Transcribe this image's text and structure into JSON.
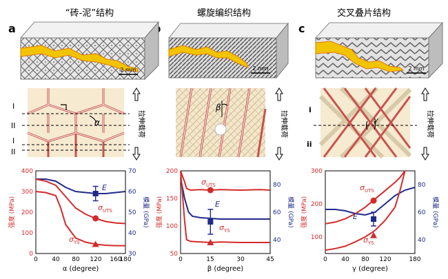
{
  "panels": [
    {
      "letter": "a",
      "title": "“砖-泥”结构",
      "scale_bar": "2 mm",
      "load_label": "拉伸载荷",
      "angle_symbol": "α",
      "layer_labels": [
        "I",
        "II",
        "I",
        "II"
      ],
      "ylabel_left": "强度 (MPa)",
      "ylabel_right": "模量 (GPa)",
      "xlabel": "α (degree)",
      "x_ticks": [
        "0",
        "40",
        "80",
        "120",
        "160",
        "180"
      ],
      "y_left_ticks": [
        "0",
        "100",
        "200",
        "300",
        "400"
      ],
      "y_right_ticks": [
        "30",
        "40",
        "50",
        "60",
        "70"
      ],
      "annotations": {
        "E": "E",
        "uts": "σ",
        "uts_sub": "UTS",
        "ys": "σ",
        "ys_sub": "YS"
      }
    },
    {
      "letter": "b",
      "title": "螺旋编织结构",
      "scale_bar": "2 mm",
      "load_label": "拉伸载荷",
      "angle_symbol": "β",
      "ylabel_left": "强度 (MPa)",
      "ylabel_right": "模量 (GPa)",
      "xlabel": "β (degree)",
      "x_ticks": [
        "0",
        "15",
        "30",
        "45"
      ],
      "y_left_ticks": [
        "50",
        "100",
        "150",
        "200"
      ],
      "y_right_ticks": [
        "40",
        "60",
        "80"
      ],
      "annotations": {
        "E": "E",
        "uts": "σ",
        "uts_sub": "UTS",
        "ys": "σ",
        "ys_sub": "YS"
      }
    },
    {
      "letter": "c",
      "title": "交叉叠片结构",
      "scale_bar": "2 mm",
      "load_label": "拉伸载荷",
      "angle_symbol": "γ",
      "layer_labels": [
        "i",
        "ii"
      ],
      "ylabel_left": "强度 (MPa)",
      "ylabel_right": "模量 (GPa)",
      "xlabel": "γ (degree)",
      "x_ticks": [
        "0",
        "40",
        "80",
        "120",
        "180"
      ],
      "y_left_ticks": [
        "100",
        "200",
        "300"
      ],
      "y_right_ticks": [
        "40",
        "60",
        "80"
      ],
      "annotations": {
        "E": "E",
        "uts": "σ",
        "uts_sub": "UTS",
        "ys": "σ",
        "ys_sub": "YS"
      }
    }
  ],
  "colors": {
    "strength": "#d42a2a",
    "modulus": "#1f2a8a",
    "crack": "#f2c400",
    "crack_edge": "#e07a00",
    "schematic_bg": "#f6ead0",
    "fiber": "#c8524e"
  },
  "chart_data": [
    {
      "type": "line",
      "panel": "a",
      "xlabel": "α (degree)",
      "ylabel_left": "强度 (MPa)",
      "ylabel_right": "模量 (GPa)",
      "xlim": [
        0,
        180
      ],
      "ylim_left": [
        0,
        400
      ],
      "ylim_right": [
        30,
        70
      ],
      "series": [
        {
          "name": "E",
          "axis": "right",
          "x": [
            0,
            20,
            40,
            60,
            80,
            100,
            120,
            140,
            160,
            180
          ],
          "y": [
            66,
            66,
            65,
            62,
            60,
            59.5,
            59,
            59,
            59.5,
            60
          ],
          "point": [
            120,
            59
          ],
          "error": 3.5
        },
        {
          "name": "σUTS",
          "axis": "left",
          "x": [
            0,
            20,
            40,
            60,
            80,
            100,
            120,
            140,
            160,
            180
          ],
          "y": [
            360,
            350,
            330,
            275,
            220,
            190,
            170,
            155,
            148,
            145
          ],
          "point": [
            120,
            170
          ]
        },
        {
          "name": "σYS",
          "axis": "left",
          "x": [
            0,
            20,
            40,
            50,
            60,
            80,
            100,
            120,
            140,
            160,
            180
          ],
          "y": [
            300,
            295,
            280,
            220,
            140,
            75,
            55,
            45,
            40,
            38,
            38
          ],
          "point": [
            120,
            45
          ]
        }
      ]
    },
    {
      "type": "line",
      "panel": "b",
      "xlabel": "β (degree)",
      "ylabel_left": "强度 (MPa)",
      "ylabel_right": "模量 (GPa)",
      "xlim": [
        0,
        45
      ],
      "ylim_left": [
        50,
        200
      ],
      "ylim_right": [
        30,
        90
      ],
      "series": [
        {
          "name": "E",
          "axis": "right",
          "x": [
            0,
            2,
            4,
            6,
            10,
            15,
            20,
            30,
            40,
            45
          ],
          "y": [
            85,
            70,
            60,
            57,
            56,
            55.5,
            55,
            55,
            55,
            55
          ],
          "point": [
            15,
            53
          ],
          "error": 9
        },
        {
          "name": "σUTS",
          "axis": "left",
          "x": [
            0,
            2,
            3,
            5,
            10,
            15,
            20,
            30,
            40,
            45
          ],
          "y": [
            200,
            180,
            168,
            165,
            166,
            165,
            166,
            165,
            166,
            165
          ],
          "point": [
            15,
            165
          ]
        },
        {
          "name": "σYS",
          "axis": "left",
          "x": [
            0,
            2,
            3,
            5,
            10,
            15,
            20,
            30,
            40,
            45
          ],
          "y": [
            200,
            110,
            75,
            72,
            71,
            70,
            71,
            70,
            70,
            70
          ],
          "point": [
            15,
            70
          ]
        }
      ]
    },
    {
      "type": "line",
      "panel": "c",
      "xlabel": "γ (degree)",
      "ylabel_left": "强度 (MPa)",
      "ylabel_right": "模量 (GPa)",
      "xlim": [
        0,
        180
      ],
      "ylim_left": [
        50,
        300
      ],
      "ylim_right": [
        30,
        90
      ],
      "series": [
        {
          "name": "E",
          "axis": "right",
          "x": [
            0,
            20,
            40,
            60,
            80,
            100,
            120,
            140,
            160,
            180
          ],
          "y": [
            62,
            62,
            61,
            59,
            58,
            60,
            66,
            72,
            76,
            78
          ],
          "point": [
            97,
            55
          ],
          "error": 5
        },
        {
          "name": "σUTS",
          "axis": "left",
          "x": [
            0,
            20,
            40,
            60,
            80,
            100,
            120,
            140,
            150,
            160
          ],
          "y": [
            140,
            145,
            155,
            170,
            190,
            215,
            240,
            265,
            280,
            300
          ],
          "point": [
            97,
            210
          ]
        },
        {
          "name": "σYS",
          "axis": "left",
          "x": [
            0,
            20,
            40,
            60,
            80,
            100,
            120,
            140,
            150,
            160
          ],
          "y": [
            60,
            65,
            72,
            85,
            100,
            120,
            150,
            190,
            240,
            300
          ],
          "point": [
            97,
            105
          ]
        }
      ]
    }
  ]
}
